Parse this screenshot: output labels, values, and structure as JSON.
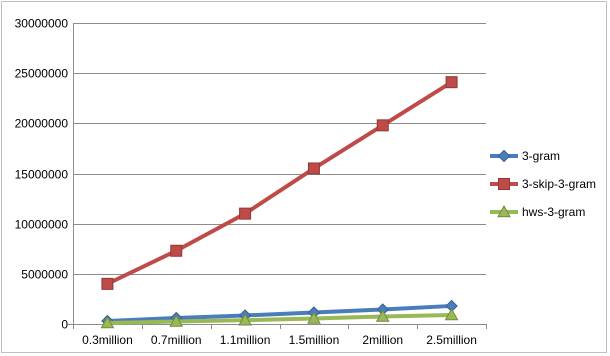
{
  "chart_data": {
    "type": "line",
    "title": "",
    "xlabel": "",
    "ylabel": "",
    "categories": [
      "0.3million",
      "0.7million",
      "1.1million",
      "1.5million",
      "2million",
      "2.5million"
    ],
    "ylim": [
      0,
      30000000
    ],
    "yticks": [
      "0",
      "5000000",
      "10000000",
      "15000000",
      "20000000",
      "25000000",
      "30000000"
    ],
    "ytick_values": [
      0,
      5000000,
      10000000,
      15000000,
      20000000,
      25000000,
      30000000
    ],
    "grid": true,
    "legend_position": "right",
    "series": [
      {
        "name": "3-gram",
        "color": "#4a7ebb",
        "marker": "diamond",
        "values": [
          300000,
          600000,
          850000,
          1150000,
          1450000,
          1800000
        ]
      },
      {
        "name": "3-skip-3-gram",
        "color": "#be4b48",
        "marker": "square",
        "values": [
          4000000,
          7300000,
          11000000,
          15500000,
          19800000,
          24100000
        ]
      },
      {
        "name": "hws-3-gram",
        "color": "#98b954",
        "marker": "triangle",
        "values": [
          100000,
          250000,
          380000,
          550000,
          750000,
          900000
        ]
      }
    ]
  }
}
